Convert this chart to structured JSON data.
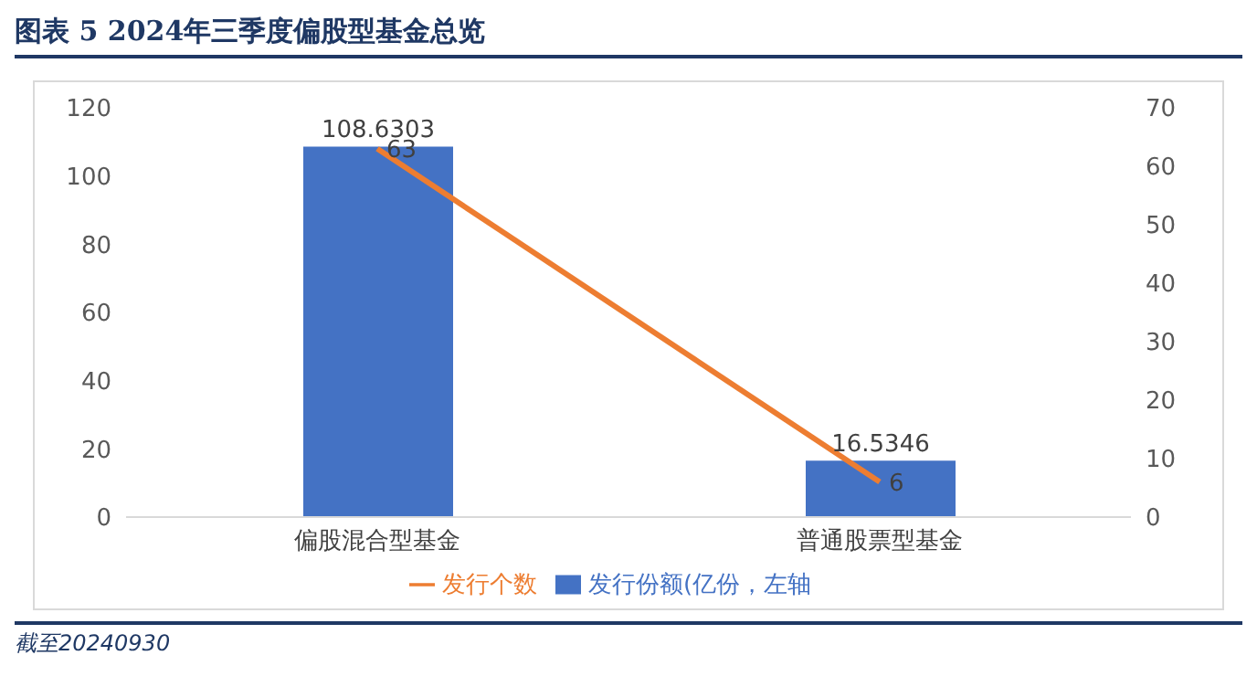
{
  "chart_data": {
    "type": "bar",
    "title": "图表 5   2024年三季度偏股型基金总览",
    "categories": [
      "偏股混合型基金",
      "普通股票型基金"
    ],
    "series": [
      {
        "name": "发行份额(亿份，左轴",
        "color": "#4472c4",
        "values": [
          108.6303,
          16.5346
        ]
      },
      {
        "name": "发行个数",
        "type": "line",
        "axis": "y2",
        "color": "#ed7d31",
        "values": [
          63,
          6
        ]
      }
    ],
    "ylim": [
      0,
      120
    ],
    "yticks": [
      0,
      20,
      40,
      60,
      80,
      100,
      120
    ],
    "y2lim": [
      0,
      70
    ],
    "y2ticks": [
      0,
      10,
      20,
      30,
      40,
      50,
      60,
      70
    ],
    "data_labels": true,
    "grid": false,
    "legend": "bottom",
    "marker": "none",
    "annotations": [
      "截至20240930"
    ]
  }
}
